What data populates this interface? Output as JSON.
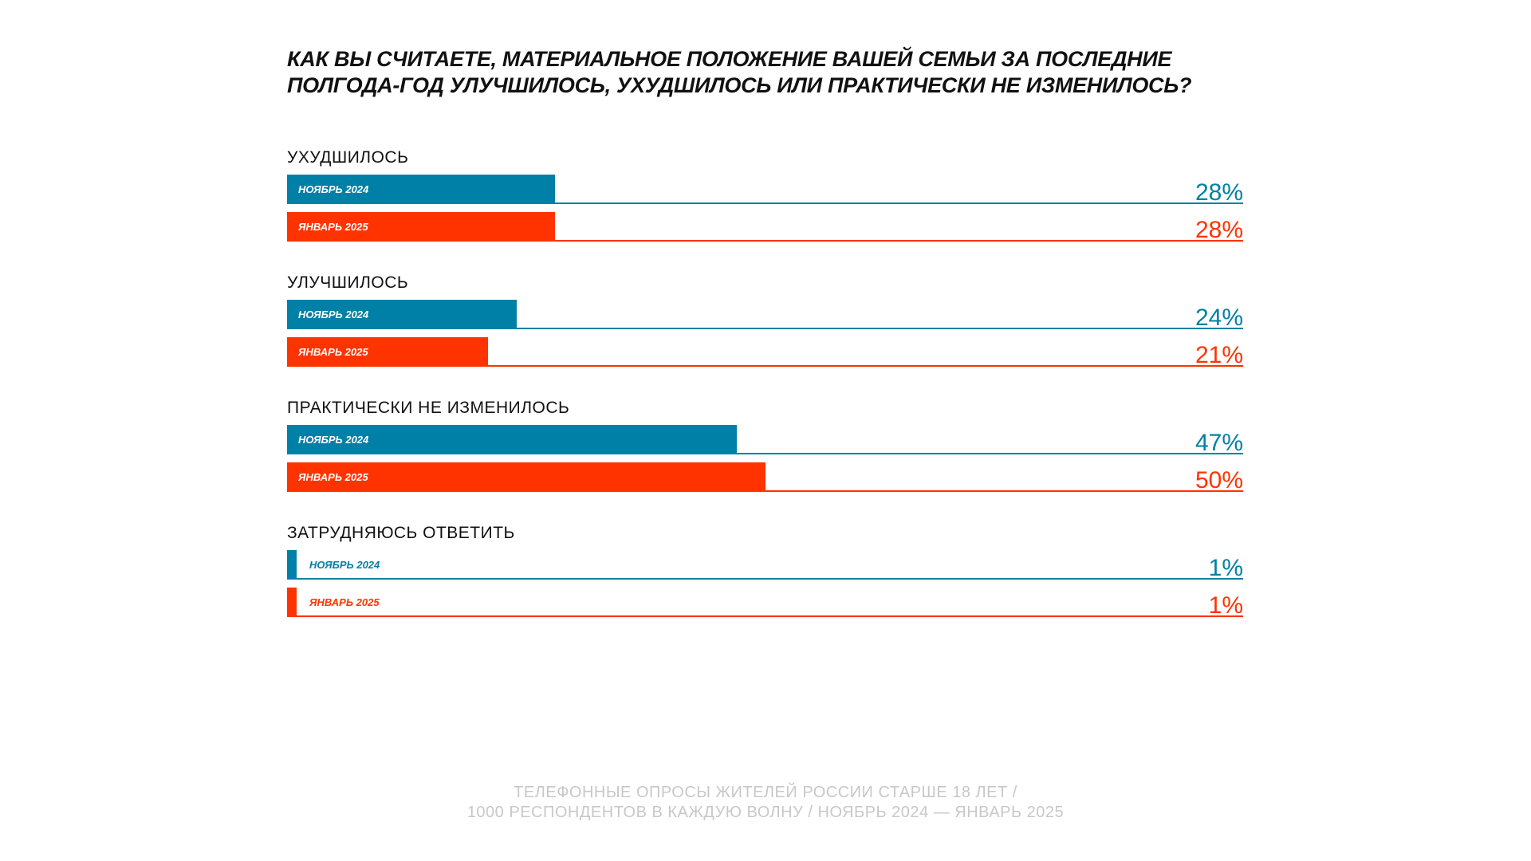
{
  "chart_data": {
    "type": "bar",
    "orientation": "horizontal",
    "title": "КАК ВЫ СЧИТАЕТЕ, МАТЕРИАЛЬНОЕ ПОЛОЖЕНИЕ ВАШЕЙ СЕМЬИ ЗА ПОСЛЕДНИЕ ПОЛГОДА-ГОД УЛУЧШИЛОСЬ, УХУДШИЛОСЬ ИЛИ ПРАКТИЧЕСКИ НЕ ИЗМЕНИЛОСЬ?",
    "title_lines": [
      "КАК ВЫ СЧИТАЕТЕ, МАТЕРИАЛЬНОЕ ПОЛОЖЕНИЕ ВАШЕЙ СЕМЬИ ЗА ПОСЛЕДНИЕ",
      "ПОЛГОДА-ГОД УЛУЧШИЛОСЬ, УХУДШИЛОСЬ ИЛИ ПРАКТИЧЕСКИ НЕ ИЗМЕНИЛОСЬ?"
    ],
    "categories": [
      "УХУДШИЛОСЬ",
      "УЛУЧШИЛОСЬ",
      "ПРАКТИЧЕСКИ НЕ ИЗМЕНИЛОСЬ",
      "ЗАТРУДНЯЮСЬ ОТВЕТИТЬ"
    ],
    "series": [
      {
        "name": "НОЯБРЬ 2024",
        "color": "#0080a6",
        "values": [
          28,
          24,
          47,
          1
        ]
      },
      {
        "name": "ЯНВАРЬ 2025",
        "color": "#ff3300",
        "values": [
          28,
          21,
          50,
          1
        ]
      }
    ],
    "unit": "%",
    "xlim": [
      0,
      100
    ],
    "grid": false
  },
  "footer": {
    "line1": "ТЕЛЕФОННЫЕ ОПРОСЫ ЖИТЕЛЕЙ РОССИИ СТАРШЕ 18 ЛЕТ /",
    "line2": "1000 РЕСПОНДЕНТОВ В КАЖДУЮ ВОЛНУ / НОЯБРЬ 2024 — ЯНВАРЬ 2025"
  }
}
